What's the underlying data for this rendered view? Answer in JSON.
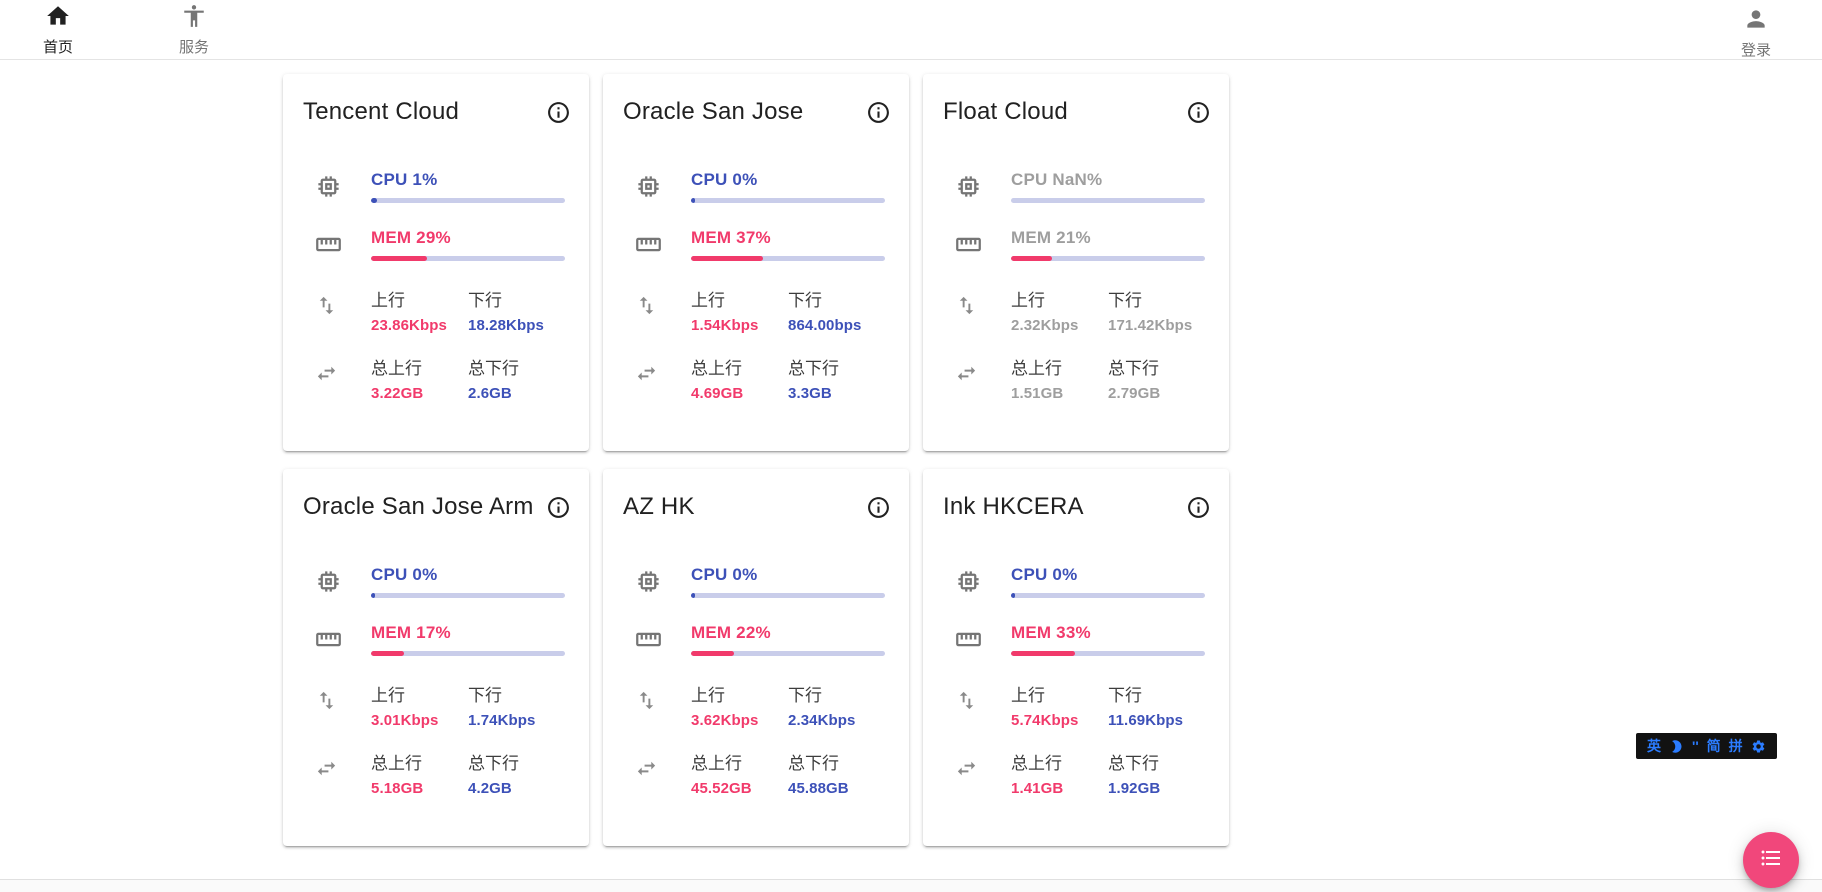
{
  "nav": {
    "home": {
      "label": "首页"
    },
    "service": {
      "label": "服务"
    },
    "login": {
      "label": "登录"
    }
  },
  "colors": {
    "accent_blue": "#3d51b8",
    "accent_pink": "#f13a6b",
    "track_lavender": "#c9cdea",
    "offline_gray": "#9e9e9e",
    "fab_pink": "#f1477b",
    "ime_blue": "#2b7cff"
  },
  "labels": {
    "up": "上行",
    "down": "下行",
    "total_up": "总上行",
    "total_down": "总下行"
  },
  "servers": [
    {
      "name": "Tencent Cloud",
      "cpu_label": "CPU 1%",
      "cpu_fill": 3,
      "mem_label": "MEM 29%",
      "mem_fill": 29,
      "up": "23.86Kbps",
      "down": "18.28Kbps",
      "total_up": "3.22GB",
      "total_down": "2.6GB",
      "offline": false
    },
    {
      "name": "Oracle San Jose",
      "cpu_label": "CPU 0%",
      "cpu_fill": 2,
      "mem_label": "MEM 37%",
      "mem_fill": 37,
      "up": "1.54Kbps",
      "down": "864.00bps",
      "total_up": "4.69GB",
      "total_down": "3.3GB",
      "offline": false
    },
    {
      "name": "Float Cloud",
      "cpu_label": "CPU NaN%",
      "cpu_fill": 0,
      "mem_label": "MEM 21%",
      "mem_fill": 21,
      "up": "2.32Kbps",
      "down": "171.42Kbps",
      "total_up": "1.51GB",
      "total_down": "2.79GB",
      "offline": true
    },
    {
      "name": "Oracle San Jose Arm",
      "cpu_label": "CPU 0%",
      "cpu_fill": 2,
      "mem_label": "MEM 17%",
      "mem_fill": 17,
      "up": "3.01Kbps",
      "down": "1.74Kbps",
      "total_up": "5.18GB",
      "total_down": "4.2GB",
      "offline": false
    },
    {
      "name": "AZ HK",
      "cpu_label": "CPU 0%",
      "cpu_fill": 2,
      "mem_label": "MEM 22%",
      "mem_fill": 22,
      "up": "3.62Kbps",
      "down": "2.34Kbps",
      "total_up": "45.52GB",
      "total_down": "45.88GB",
      "offline": false
    },
    {
      "name": "Ink HKCERA",
      "cpu_label": "CPU 0%",
      "cpu_fill": 2,
      "mem_label": "MEM 33%",
      "mem_fill": 33,
      "up": "5.74Kbps",
      "down": "11.69Kbps",
      "total_up": "1.41GB",
      "total_down": "1.92GB",
      "offline": false
    }
  ],
  "ime_bar": {
    "lang": "英",
    "punct": "''",
    "simp": "简",
    "pinyin": "拼"
  }
}
